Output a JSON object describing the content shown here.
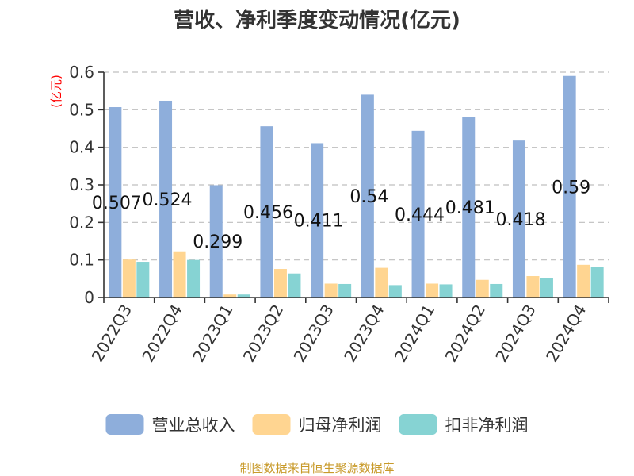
{
  "chart_data": {
    "type": "bar",
    "title": "营收、净利季度变动情况(亿元)",
    "ylabel": "(亿元)",
    "xlabel": "",
    "ylim": [
      0,
      0.6
    ],
    "yticks": [
      0,
      0.1,
      0.2,
      0.3,
      0.4,
      0.5,
      0.6
    ],
    "ytick_labels": [
      "0",
      "0.1",
      "0.2",
      "0.3",
      "0.4",
      "0.5",
      "0.6"
    ],
    "grid": true,
    "legend_position": "bottom",
    "categories": [
      "2022Q3",
      "2022Q4",
      "2023Q1",
      "2023Q2",
      "2023Q3",
      "2023Q4",
      "2024Q1",
      "2024Q2",
      "2024Q3",
      "2024Q4"
    ],
    "series": [
      {
        "name": "营业总收入",
        "color": "#8eaedb",
        "values": [
          0.507,
          0.524,
          0.299,
          0.456,
          0.411,
          0.54,
          0.444,
          0.481,
          0.418,
          0.59
        ]
      },
      {
        "name": "归母净利润",
        "color": "#ffd591",
        "values": [
          0.101,
          0.121,
          0.008,
          0.076,
          0.037,
          0.079,
          0.037,
          0.047,
          0.057,
          0.087
        ]
      },
      {
        "name": "扣非净利润",
        "color": "#86d3d3",
        "values": [
          0.095,
          0.1,
          0.008,
          0.064,
          0.036,
          0.033,
          0.035,
          0.036,
          0.051,
          0.081
        ]
      }
    ],
    "data_labels": [
      "0.507",
      "0.524",
      "0.299",
      "0.456",
      "0.411",
      "0.54",
      "0.444",
      "0.481",
      "0.418",
      "0.59"
    ]
  },
  "source": "制图数据来自恒生聚源数据库"
}
